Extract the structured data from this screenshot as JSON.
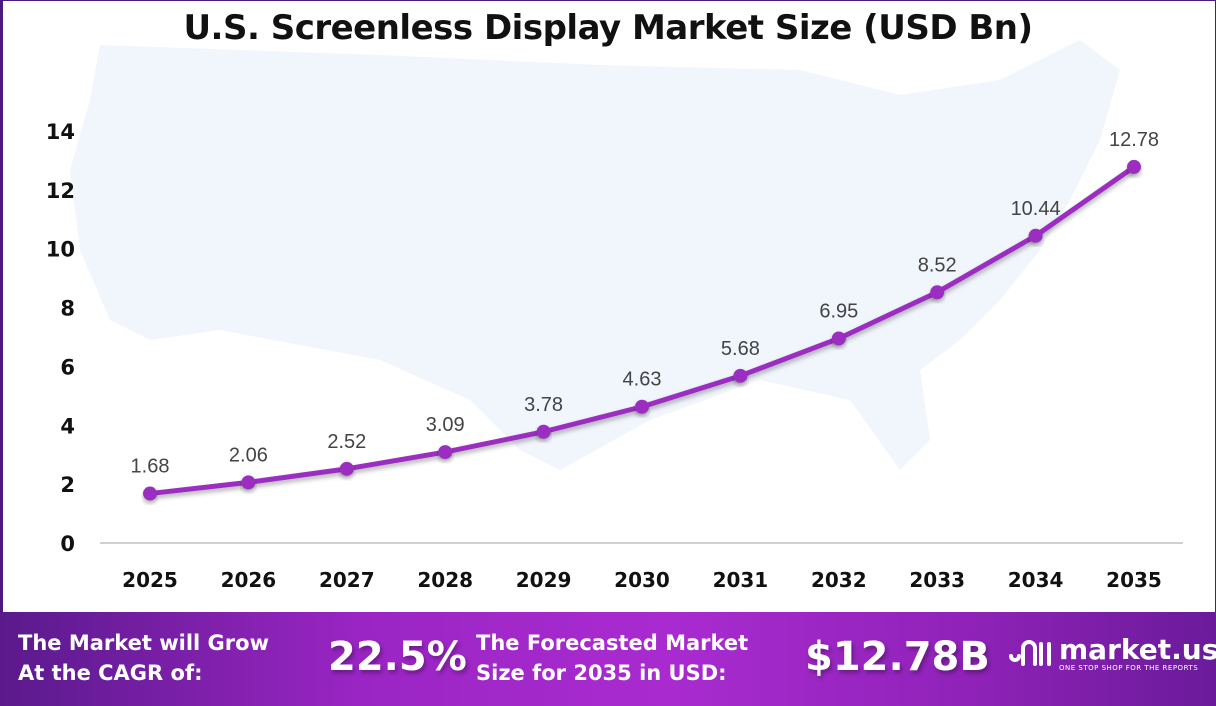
{
  "chart_data": {
    "type": "line",
    "title": "U.S. Screenless Display Market Size (USD Bn)",
    "categories": [
      "2025",
      "2026",
      "2027",
      "2028",
      "2029",
      "2030",
      "2031",
      "2032",
      "2033",
      "2034",
      "2035"
    ],
    "values": [
      1.68,
      2.06,
      2.52,
      3.09,
      3.78,
      4.63,
      5.68,
      6.95,
      8.52,
      10.44,
      12.78
    ],
    "data_labels": [
      "1.68",
      "2.06",
      "2.52",
      "3.09",
      "3.78",
      "4.63",
      "5.68",
      "6.95",
      "8.52",
      "10.44",
      "12.78"
    ],
    "yticks": [
      "0",
      "2",
      "4",
      "6",
      "8",
      "10",
      "12",
      "14"
    ],
    "ylim": [
      0,
      14
    ],
    "grid": false,
    "line_color": "#9b2fc0"
  },
  "banner": {
    "cagr_label_line1": "The Market will Grow",
    "cagr_label_line2": "At the CAGR of:",
    "cagr_value": "22.5%",
    "forecast_label_line1": "The Forecasted Market",
    "forecast_label_line2": "Size for 2035 in USD:",
    "forecast_value": "$12.78B",
    "logo_name": "market.us",
    "logo_tagline": "ONE STOP SHOP FOR THE REPORTS"
  }
}
